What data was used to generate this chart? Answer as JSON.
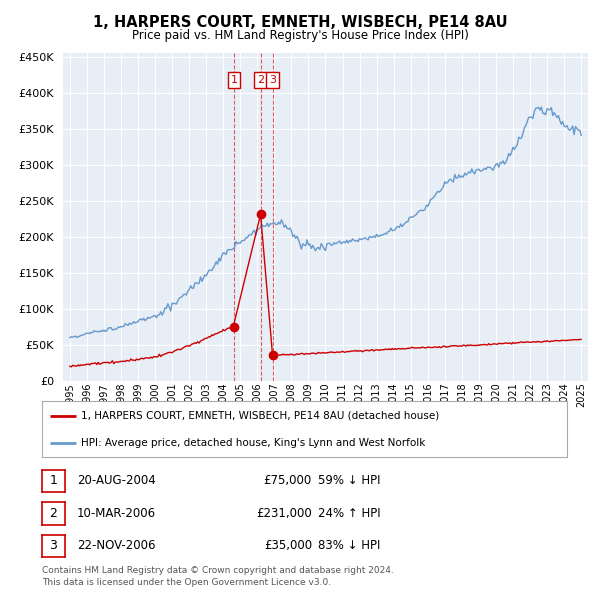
{
  "title": "1, HARPERS COURT, EMNETH, WISBECH, PE14 8AU",
  "subtitle": "Price paid vs. HM Land Registry's House Price Index (HPI)",
  "transactions": [
    {
      "price": 75000,
      "label": "1",
      "x": 2004.639
    },
    {
      "price": 231000,
      "label": "2",
      "x": 2006.192
    },
    {
      "price": 35000,
      "label": "3",
      "x": 2006.894
    }
  ],
  "legend_line1": "1, HARPERS COURT, EMNETH, WISBECH, PE14 8AU (detached house)",
  "legend_line2": "HPI: Average price, detached house, King's Lynn and West Norfolk",
  "table_rows": [
    {
      "num": "1",
      "date": "20-AUG-2004",
      "price": "£75,000",
      "hpi": "59% ↓ HPI"
    },
    {
      "num": "2",
      "date": "10-MAR-2006",
      "price": "£231,000",
      "hpi": "24% ↑ HPI"
    },
    {
      "num": "3",
      "date": "22-NOV-2006",
      "price": "£35,000",
      "hpi": "83% ↓ HPI"
    }
  ],
  "footer": "Contains HM Land Registry data © Crown copyright and database right 2024.\nThis data is licensed under the Open Government Licence v3.0.",
  "red_color": "#cc0000",
  "blue_color": "#6699cc",
  "bg_plot": "#e8eef5",
  "background": "#ffffff",
  "ylim": [
    0,
    450000
  ],
  "xlim_start": 1994.6,
  "xlim_end": 2025.4
}
